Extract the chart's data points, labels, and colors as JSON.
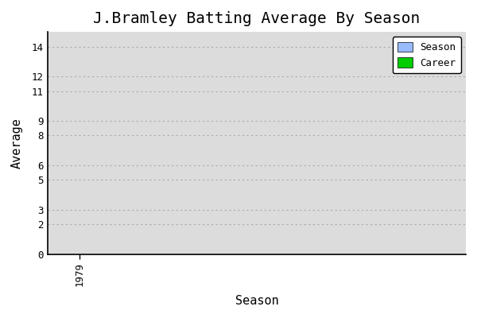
{
  "title": "J.Bramley Batting Average By Season",
  "xlabel": "Season",
  "ylabel": "Average",
  "x_ticks": [
    1979
  ],
  "yticks": [
    0,
    2,
    3,
    5,
    6,
    8,
    9,
    11,
    12,
    14
  ],
  "ylim": [
    0,
    15
  ],
  "xlim": [
    1978.5,
    1985
  ],
  "background_color": "#ffffff",
  "plot_bg_color": "#dcdcdc",
  "grid_color": "#aaaaaa",
  "season_color": "#99bbff",
  "career_color": "#00cc00",
  "legend_labels": [
    "Season",
    "Career"
  ],
  "title_fontsize": 14,
  "axis_label_fontsize": 11,
  "tick_fontsize": 9,
  "font_family": "monospace"
}
